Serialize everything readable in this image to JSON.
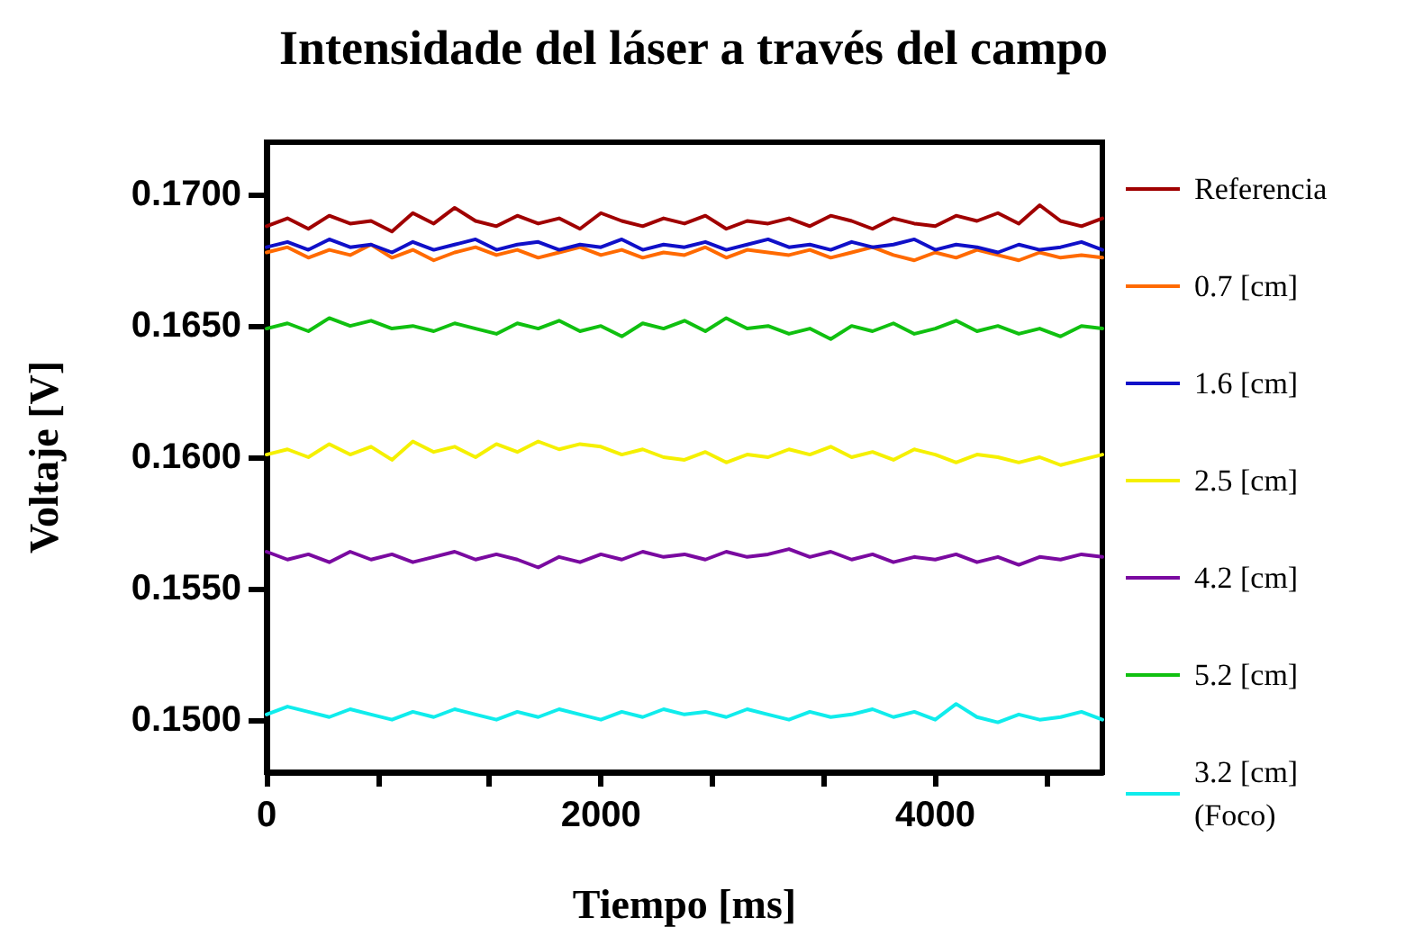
{
  "chart_data": {
    "type": "line",
    "title": "Intensidade del láser a través del campo",
    "xlabel": "Tiempo [ms]",
    "ylabel": "Voltaje [V]",
    "xlim": [
      0,
      5000
    ],
    "ylim": [
      0.148,
      0.172
    ],
    "xticks": [
      0,
      {
        "value": 667,
        "label": null
      },
      {
        "value": 1333,
        "label": null
      },
      2000,
      {
        "value": 2667,
        "label": null
      },
      {
        "value": 3333,
        "label": null
      },
      4000,
      {
        "value": 4667,
        "label": null
      }
    ],
    "yticks": [
      {
        "value": 0.15,
        "label": "0.1500"
      },
      {
        "value": 0.155,
        "label": "0.1550"
      },
      {
        "value": 0.16,
        "label": "0.1600"
      },
      {
        "value": 0.165,
        "label": "0.1650"
      },
      {
        "value": 0.17,
        "label": "0.1700"
      }
    ],
    "grid": false,
    "legend": "right",
    "marker": "none",
    "line_style": "solid",
    "x": [
      0,
      125,
      250,
      375,
      500,
      625,
      750,
      875,
      1000,
      1125,
      1250,
      1375,
      1500,
      1625,
      1750,
      1875,
      2000,
      2125,
      2250,
      2375,
      2500,
      2625,
      2750,
      2875,
      3000,
      3125,
      3250,
      3375,
      3500,
      3625,
      3750,
      3875,
      4000,
      4125,
      4250,
      4375,
      4500,
      4625,
      4750,
      4875,
      5000
    ],
    "series": [
      {
        "name": "Referencia",
        "color": "#a00000",
        "values": [
          0.1688,
          0.1691,
          0.1687,
          0.1692,
          0.1689,
          0.169,
          0.1686,
          0.1693,
          0.1689,
          0.1695,
          0.169,
          0.1688,
          0.1692,
          0.1689,
          0.1691,
          0.1687,
          0.1693,
          0.169,
          0.1688,
          0.1691,
          0.1689,
          0.1692,
          0.1687,
          0.169,
          0.1689,
          0.1691,
          0.1688,
          0.1692,
          0.169,
          0.1687,
          0.1691,
          0.1689,
          0.1688,
          0.1692,
          0.169,
          0.1693,
          0.1689,
          0.1696,
          0.169,
          0.1688,
          0.1691
        ]
      },
      {
        "name": "0.7 [cm]",
        "color": "#ff6a00",
        "values": [
          0.1678,
          0.168,
          0.1676,
          0.1679,
          0.1677,
          0.1681,
          0.1676,
          0.1679,
          0.1675,
          0.1678,
          0.168,
          0.1677,
          0.1679,
          0.1676,
          0.1678,
          0.168,
          0.1677,
          0.1679,
          0.1676,
          0.1678,
          0.1677,
          0.168,
          0.1676,
          0.1679,
          0.1678,
          0.1677,
          0.1679,
          0.1676,
          0.1678,
          0.168,
          0.1677,
          0.1675,
          0.1678,
          0.1676,
          0.1679,
          0.1677,
          0.1675,
          0.1678,
          0.1676,
          0.1677,
          0.1676
        ]
      },
      {
        "name": "1.6 [cm]",
        "color": "#1010c8",
        "values": [
          0.168,
          0.1682,
          0.1679,
          0.1683,
          0.168,
          0.1681,
          0.1678,
          0.1682,
          0.1679,
          0.1681,
          0.1683,
          0.1679,
          0.1681,
          0.1682,
          0.1679,
          0.1681,
          0.168,
          0.1683,
          0.1679,
          0.1681,
          0.168,
          0.1682,
          0.1679,
          0.1681,
          0.1683,
          0.168,
          0.1681,
          0.1679,
          0.1682,
          0.168,
          0.1681,
          0.1683,
          0.1679,
          0.1681,
          0.168,
          0.1678,
          0.1681,
          0.1679,
          0.168,
          0.1682,
          0.1679
        ]
      },
      {
        "name": "2.5 [cm]",
        "color": "#f5f000",
        "values": [
          0.1601,
          0.1603,
          0.16,
          0.1605,
          0.1601,
          0.1604,
          0.1599,
          0.1606,
          0.1602,
          0.1604,
          0.16,
          0.1605,
          0.1602,
          0.1606,
          0.1603,
          0.1605,
          0.1604,
          0.1601,
          0.1603,
          0.16,
          0.1599,
          0.1602,
          0.1598,
          0.1601,
          0.16,
          0.1603,
          0.1601,
          0.1604,
          0.16,
          0.1602,
          0.1599,
          0.1603,
          0.1601,
          0.1598,
          0.1601,
          0.16,
          0.1598,
          0.16,
          0.1597,
          0.1599,
          0.1601
        ]
      },
      {
        "name": "4.2 [cm]",
        "color": "#7a0aa0",
        "values": [
          0.1564,
          0.1561,
          0.1563,
          0.156,
          0.1564,
          0.1561,
          0.1563,
          0.156,
          0.1562,
          0.1564,
          0.1561,
          0.1563,
          0.1561,
          0.1558,
          0.1562,
          0.156,
          0.1563,
          0.1561,
          0.1564,
          0.1562,
          0.1563,
          0.1561,
          0.1564,
          0.1562,
          0.1563,
          0.1565,
          0.1562,
          0.1564,
          0.1561,
          0.1563,
          0.156,
          0.1562,
          0.1561,
          0.1563,
          0.156,
          0.1562,
          0.1559,
          0.1562,
          0.1561,
          0.1563,
          0.1562
        ]
      },
      {
        "name": "5.2 [cm]",
        "color": "#10c010",
        "values": [
          0.1649,
          0.1651,
          0.1648,
          0.1653,
          0.165,
          0.1652,
          0.1649,
          0.165,
          0.1648,
          0.1651,
          0.1649,
          0.1647,
          0.1651,
          0.1649,
          0.1652,
          0.1648,
          0.165,
          0.1646,
          0.1651,
          0.1649,
          0.1652,
          0.1648,
          0.1653,
          0.1649,
          0.165,
          0.1647,
          0.1649,
          0.1645,
          0.165,
          0.1648,
          0.1651,
          0.1647,
          0.1649,
          0.1652,
          0.1648,
          0.165,
          0.1647,
          0.1649,
          0.1646,
          0.165,
          0.1649
        ]
      },
      {
        "name": "3.2 [cm]\n(Foco)",
        "color": "#10ecec",
        "values": [
          0.1502,
          0.1505,
          0.1503,
          0.1501,
          0.1504,
          0.1502,
          0.15,
          0.1503,
          0.1501,
          0.1504,
          0.1502,
          0.15,
          0.1503,
          0.1501,
          0.1504,
          0.1502,
          0.15,
          0.1503,
          0.1501,
          0.1504,
          0.1502,
          0.1503,
          0.1501,
          0.1504,
          0.1502,
          0.15,
          0.1503,
          0.1501,
          0.1502,
          0.1504,
          0.1501,
          0.1503,
          0.15,
          0.1506,
          0.1501,
          0.1499,
          0.1502,
          0.15,
          0.1501,
          0.1503,
          0.15
        ]
      }
    ]
  }
}
